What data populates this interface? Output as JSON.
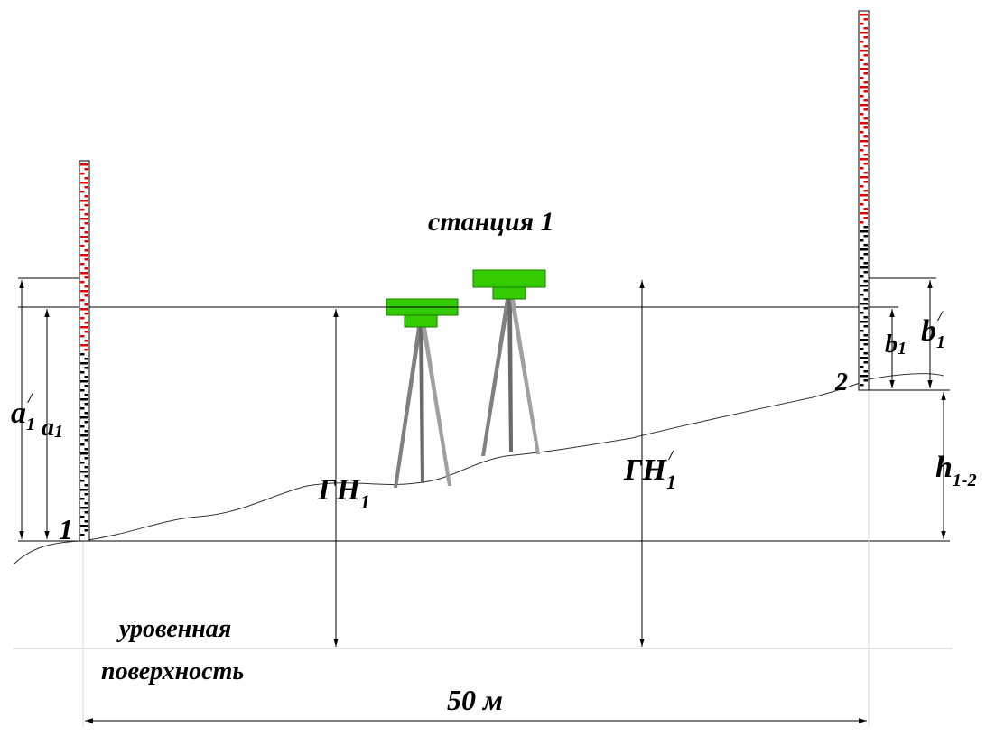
{
  "labels": {
    "station": "станция 1",
    "level_surface_line1": "уровенная",
    "level_surface_line2": "поверхность",
    "distance": "50 м",
    "point1": "1",
    "point2": "2",
    "a1_prime_main": "a",
    "a1_prime_sub": "1",
    "a1_prime_sup": "/",
    "a1_main": "a",
    "a1_sub": "1",
    "b1_main": "b",
    "b1_sub": "1",
    "b1_prime_main": "b",
    "b1_prime_sub": "1",
    "b1_prime_sup": "/",
    "h_main": "h",
    "h_sub": "1-2",
    "gn1_main": "ГН",
    "gn1_sub": "1",
    "gn1_prime_main": "ГН",
    "gn1_prime_sub": "1",
    "gn1_prime_sup": "/"
  },
  "colors": {
    "instrument": "#33cc00",
    "instrument_dark": "#1a7a00",
    "rod_red": "#e60000",
    "rod_black": "#000000",
    "tripod": "#808080"
  }
}
